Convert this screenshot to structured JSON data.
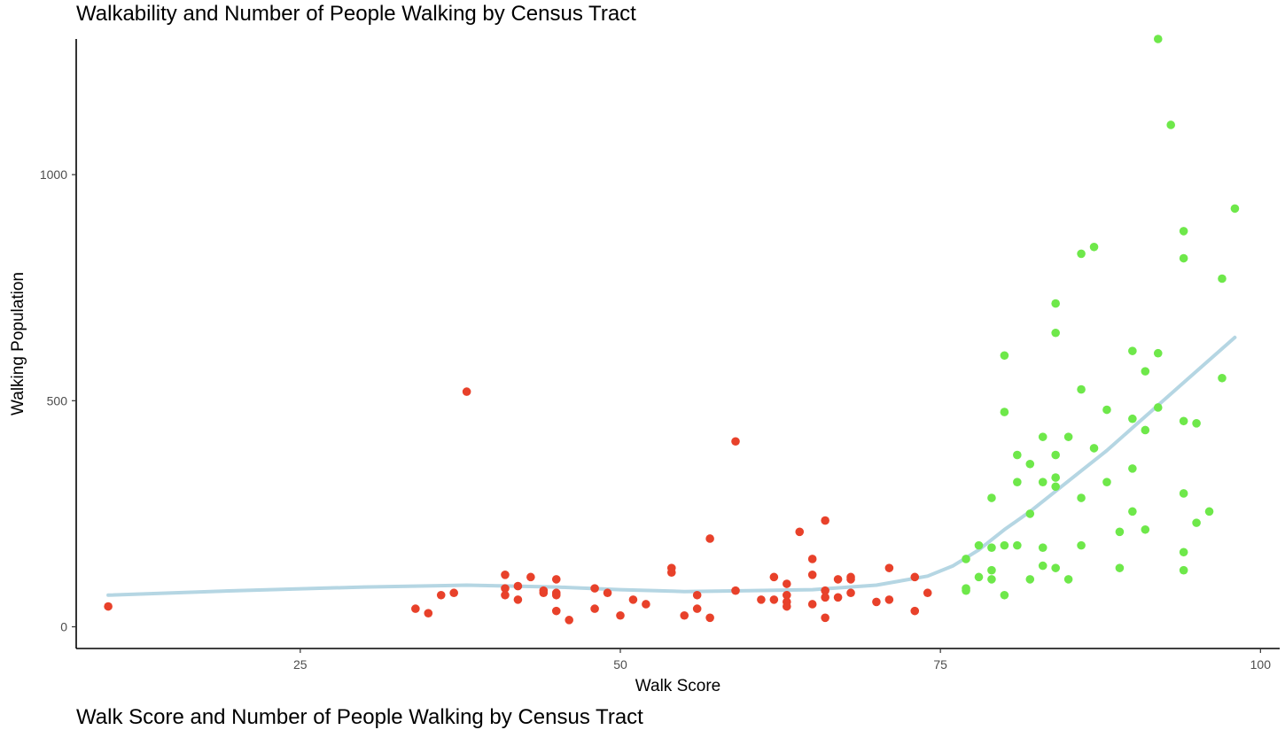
{
  "chart_data": [
    {
      "type": "scatter",
      "title": "Walkability and Number of People Walking by Census Tract",
      "xlabel": "Walk Score",
      "ylabel": "Walking Population",
      "xlim": [
        7.5,
        101.5
      ],
      "ylim": [
        -48,
        1300
      ],
      "x_ticks": [
        25,
        50,
        75,
        100
      ],
      "y_ticks": [
        0,
        500,
        1000
      ],
      "grid": false,
      "legend": "none",
      "colors": {
        "low": "#e8412a",
        "high": "#6ee84a",
        "trend": "#b5d6e3",
        "axis": "#000000"
      },
      "series": [
        {
          "points": [
            [
              10,
              45
            ],
            [
              34,
              40
            ],
            [
              35,
              30
            ],
            [
              36,
              70
            ],
            [
              37,
              75
            ],
            [
              38,
              520
            ],
            [
              41,
              115
            ],
            [
              41,
              85
            ],
            [
              41,
              70
            ],
            [
              42,
              90
            ],
            [
              42,
              60
            ],
            [
              43,
              110
            ],
            [
              44,
              80
            ],
            [
              44,
              75
            ],
            [
              45,
              105
            ],
            [
              45,
              75
            ],
            [
              45,
              70
            ],
            [
              45,
              35
            ],
            [
              46,
              15
            ],
            [
              48,
              85
            ],
            [
              48,
              40
            ],
            [
              49,
              75
            ],
            [
              50,
              25
            ],
            [
              51,
              60
            ],
            [
              52,
              50
            ],
            [
              54,
              130
            ],
            [
              54,
              120
            ],
            [
              55,
              25
            ],
            [
              56,
              70
            ],
            [
              56,
              40
            ],
            [
              57,
              195
            ],
            [
              57,
              20
            ],
            [
              59,
              410
            ],
            [
              59,
              80
            ],
            [
              61,
              60
            ],
            [
              62,
              110
            ],
            [
              62,
              60
            ],
            [
              63,
              95
            ],
            [
              63,
              70
            ],
            [
              63,
              55
            ],
            [
              63,
              45
            ],
            [
              64,
              210
            ],
            [
              65,
              150
            ],
            [
              65,
              115
            ],
            [
              65,
              50
            ],
            [
              66,
              235
            ],
            [
              66,
              80
            ],
            [
              66,
              65
            ],
            [
              66,
              20
            ],
            [
              67,
              105
            ],
            [
              67,
              65
            ],
            [
              68,
              110
            ],
            [
              68,
              105
            ],
            [
              68,
              75
            ],
            [
              70,
              55
            ],
            [
              71,
              130
            ],
            [
              71,
              60
            ],
            [
              73,
              110
            ],
            [
              73,
              35
            ],
            [
              74,
              75
            ]
          ]
        },
        {
          "points": [
            [
              77,
              150
            ],
            [
              77,
              85
            ],
            [
              77,
              80
            ],
            [
              78,
              180
            ],
            [
              78,
              110
            ],
            [
              79,
              285
            ],
            [
              79,
              175
            ],
            [
              79,
              125
            ],
            [
              79,
              105
            ],
            [
              80,
              600
            ],
            [
              80,
              475
            ],
            [
              80,
              180
            ],
            [
              80,
              70
            ],
            [
              81,
              380
            ],
            [
              81,
              320
            ],
            [
              81,
              180
            ],
            [
              82,
              360
            ],
            [
              82,
              250
            ],
            [
              82,
              105
            ],
            [
              83,
              420
            ],
            [
              83,
              320
            ],
            [
              83,
              175
            ],
            [
              83,
              135
            ],
            [
              84,
              715
            ],
            [
              84,
              650
            ],
            [
              84,
              380
            ],
            [
              84,
              330
            ],
            [
              84,
              310
            ],
            [
              84,
              130
            ],
            [
              85,
              420
            ],
            [
              85,
              105
            ],
            [
              86,
              825
            ],
            [
              86,
              525
            ],
            [
              86,
              285
            ],
            [
              86,
              180
            ],
            [
              87,
              840
            ],
            [
              87,
              395
            ],
            [
              88,
              480
            ],
            [
              88,
              320
            ],
            [
              89,
              210
            ],
            [
              89,
              130
            ],
            [
              90,
              610
            ],
            [
              90,
              460
            ],
            [
              90,
              350
            ],
            [
              90,
              255
            ],
            [
              91,
              565
            ],
            [
              91,
              435
            ],
            [
              91,
              215
            ],
            [
              92,
              1300
            ],
            [
              92,
              605
            ],
            [
              92,
              485
            ],
            [
              93,
              1110
            ],
            [
              94,
              875
            ],
            [
              94,
              815
            ],
            [
              94,
              455
            ],
            [
              94,
              295
            ],
            [
              94,
              165
            ],
            [
              94,
              125
            ],
            [
              95,
              450
            ],
            [
              95,
              230
            ],
            [
              96,
              255
            ],
            [
              97,
              770
            ],
            [
              97,
              550
            ],
            [
              98,
              925
            ]
          ]
        }
      ],
      "trend_line": [
        [
          10,
          70
        ],
        [
          20,
          80
        ],
        [
          30,
          88
        ],
        [
          38,
          92
        ],
        [
          45,
          88
        ],
        [
          50,
          82
        ],
        [
          55,
          78
        ],
        [
          60,
          80
        ],
        [
          65,
          82
        ],
        [
          70,
          92
        ],
        [
          74,
          112
        ],
        [
          76,
          135
        ],
        [
          78,
          170
        ],
        [
          80,
          215
        ],
        [
          82,
          255
        ],
        [
          84,
          300
        ],
        [
          86,
          345
        ],
        [
          88,
          390
        ],
        [
          90,
          440
        ],
        [
          92,
          490
        ],
        [
          94,
          540
        ],
        [
          96,
          590
        ],
        [
          98,
          640
        ]
      ]
    },
    {
      "title": "Walk Score and Number of People Walking by Census Tract"
    }
  ]
}
